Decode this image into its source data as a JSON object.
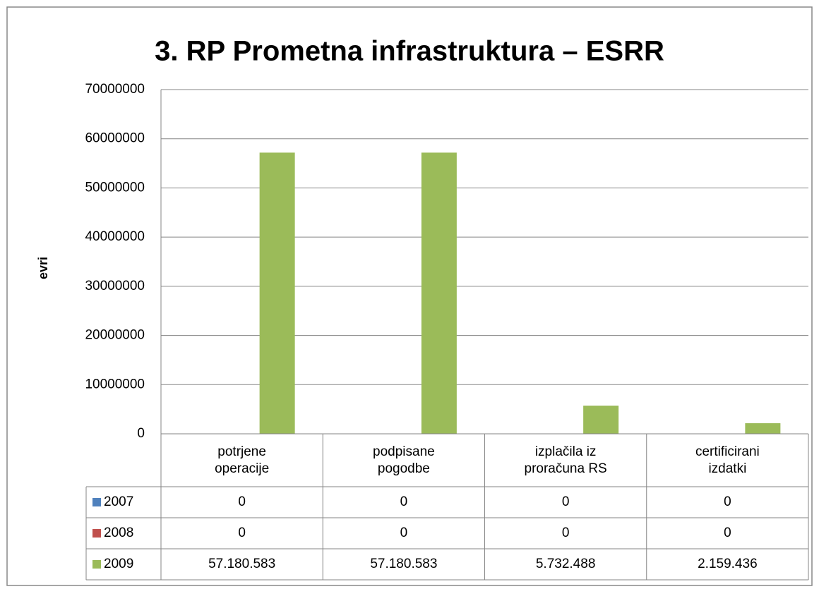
{
  "chart_data": {
    "type": "bar",
    "title": "3. RP Prometna infrastruktura – ESRR",
    "ylabel": "evri",
    "categories": [
      "potrjene operacije",
      "podpisane pogodbe",
      "izplačila iz proračuna RS",
      "certificirani izdatki"
    ],
    "series": [
      {
        "name": "2007",
        "color": "#4f81bd",
        "values": [
          0,
          0,
          0,
          0
        ]
      },
      {
        "name": "2008",
        "color": "#c0504d",
        "values": [
          0,
          0,
          0,
          0
        ]
      },
      {
        "name": "2009",
        "color": "#9bbb59",
        "values": [
          57180583,
          57180583,
          5732488,
          2159436
        ],
        "value_labels": [
          "57.180.583",
          "57.180.583",
          "5.732.488",
          "2.159.436"
        ]
      }
    ],
    "ylim": [
      0,
      70000000
    ],
    "yticks": [
      0,
      10000000,
      20000000,
      30000000,
      40000000,
      50000000,
      60000000,
      70000000
    ],
    "grid": true
  }
}
